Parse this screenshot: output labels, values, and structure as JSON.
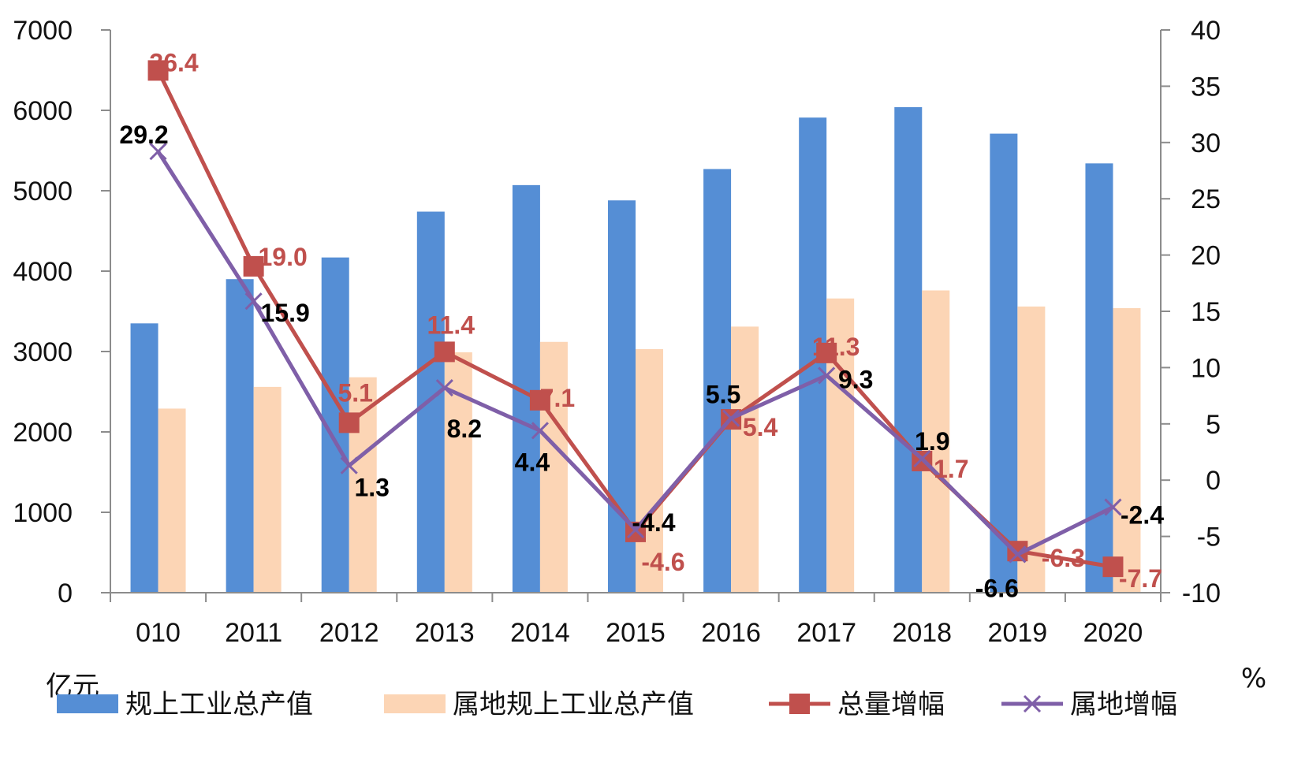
{
  "chart_data": {
    "type": "bar",
    "categories": [
      "010",
      "2011",
      "2012",
      "2013",
      "2014",
      "2015",
      "2016",
      "2017",
      "2018",
      "2019",
      "2020"
    ],
    "left_axis": {
      "unit": "亿元",
      "ylim": [
        0,
        7000
      ],
      "ticks": [
        "0",
        "1000",
        "2000",
        "3000",
        "4000",
        "5000",
        "6000",
        "7000"
      ]
    },
    "right_axis": {
      "unit": "%",
      "ylim": [
        -10,
        40
      ],
      "ticks": [
        "-10",
        "-5",
        "0",
        "5",
        "10",
        "15",
        "20",
        "25",
        "30",
        "35",
        "40"
      ]
    },
    "grid": false,
    "legend_position": "bottom",
    "series": [
      {
        "name": "规上工业总产值",
        "kind": "bar",
        "axis": "left",
        "color": "#558ed5",
        "values": [
          3350,
          3900,
          4170,
          4740,
          5070,
          4880,
          5270,
          5910,
          6040,
          5710,
          5340
        ]
      },
      {
        "name": "属地规上工业总产值",
        "kind": "bar",
        "axis": "left",
        "color": "#fcd5b5",
        "values": [
          2290,
          2560,
          2680,
          2990,
          3120,
          3030,
          3310,
          3660,
          3760,
          3560,
          3540
        ]
      },
      {
        "name": "总量增幅",
        "kind": "line",
        "axis": "right",
        "color": "#c0504d",
        "marker": "square",
        "values": [
          36.4,
          19.0,
          5.1,
          11.4,
          7.1,
          -4.6,
          5.4,
          11.3,
          1.7,
          -6.3,
          -7.7
        ],
        "labels": [
          "36.4",
          "19.0",
          "5.1",
          "11.4",
          "7.1",
          "-4.6",
          "5.4",
          "11.3",
          "1.7",
          "-6.3",
          "-7.7"
        ]
      },
      {
        "name": "属地增幅",
        "kind": "line",
        "axis": "right",
        "color": "#7f5fa8",
        "marker": "x",
        "values": [
          29.2,
          15.9,
          1.3,
          8.2,
          4.4,
          -4.4,
          5.5,
          9.3,
          1.9,
          -6.6,
          -2.4
        ],
        "labels": [
          "29.2",
          "15.9",
          "1.3",
          "8.2",
          "4.4",
          "-4.4",
          "5.5",
          "9.3",
          "1.9",
          "-6.6",
          "-2.4"
        ]
      }
    ]
  }
}
